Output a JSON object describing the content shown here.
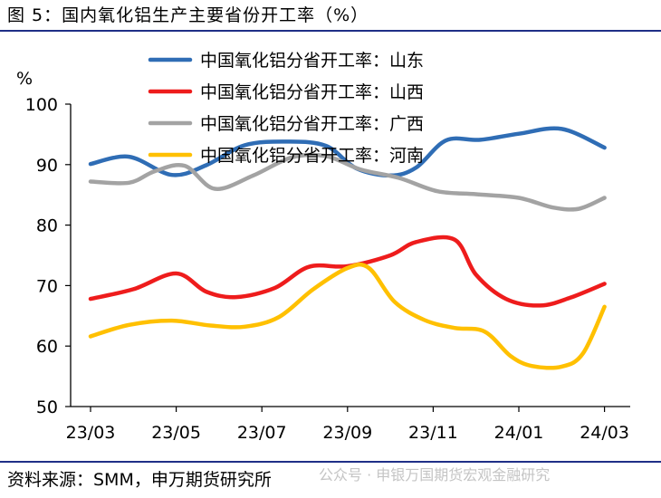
{
  "figure": {
    "title": "图 5：国内氧化铝生产主要省份开工率（%）",
    "source": "资料来源：SMM，申万期货研究所",
    "watermark": "公众号 · 申银万国期货宏观金融研究"
  },
  "chart_data": {
    "type": "line",
    "ylabel": "%",
    "ylim": [
      50,
      100
    ],
    "yticks": [
      "50",
      "60",
      "70",
      "80",
      "90",
      "100"
    ],
    "xlim": [
      0,
      12.5
    ],
    "xticks": [
      {
        "pos": 0,
        "label": "23/03"
      },
      {
        "pos": 2,
        "label": "23/05"
      },
      {
        "pos": 4,
        "label": "23/07"
      },
      {
        "pos": 6,
        "label": "23/09"
      },
      {
        "pos": 8,
        "label": "23/11"
      },
      {
        "pos": 10,
        "label": "24/01"
      },
      {
        "pos": 12,
        "label": "24/03"
      }
    ],
    "grid": false,
    "legend_position": "top-right",
    "series": [
      {
        "name": "中国氧化铝分省开工率：山东",
        "color": "#2f6db5",
        "x": [
          0,
          0.9,
          1.9,
          2.7,
          3.6,
          4.6,
          5.5,
          6.2,
          7.0,
          7.6,
          8.3,
          9.1,
          10.0,
          11.0,
          12.0
        ],
        "y": [
          90.1,
          91.3,
          88.3,
          89.9,
          93.2,
          93.8,
          93.1,
          89.4,
          88.2,
          89.5,
          94.0,
          94.1,
          95.1,
          95.9,
          92.8
        ]
      },
      {
        "name": "中国氧化铝分省开工率：山西",
        "color": "#ee1c1c",
        "x": [
          0,
          1.0,
          2.0,
          2.7,
          3.4,
          4.3,
          5.1,
          6.0,
          7.0,
          7.6,
          8.5,
          9.0,
          9.7,
          10.5,
          11.2,
          12.0
        ],
        "y": [
          67.8,
          69.4,
          72.0,
          69.0,
          68.1,
          69.6,
          73.1,
          73.2,
          75.0,
          77.2,
          77.6,
          71.8,
          67.8,
          66.7,
          68.0,
          70.3
        ]
      },
      {
        "name": "中国氧化铝分省开工率：广西",
        "color": "#a3a3a3",
        "x": [
          0,
          0.9,
          1.5,
          2.2,
          2.9,
          3.8,
          4.7,
          5.5,
          6.3,
          7.2,
          8.1,
          9.0,
          10.0,
          10.8,
          11.4,
          12.0
        ],
        "y": [
          87.2,
          87.0,
          88.9,
          89.8,
          86.0,
          88.2,
          91.2,
          91.4,
          89.2,
          87.8,
          85.6,
          85.1,
          84.5,
          82.9,
          82.7,
          84.5
        ]
      },
      {
        "name": "中国氧化铝分省开工率：河南",
        "color": "#ffc000",
        "x": [
          0,
          0.9,
          1.9,
          2.8,
          3.6,
          4.4,
          5.2,
          6.0,
          6.5,
          7.1,
          7.8,
          8.5,
          9.2,
          9.8,
          10.3,
          11.0,
          11.5,
          12.0
        ],
        "y": [
          61.6,
          63.5,
          64.2,
          63.4,
          63.2,
          64.8,
          69.4,
          72.9,
          72.9,
          67.3,
          64.3,
          63.0,
          62.4,
          58.4,
          56.7,
          56.6,
          58.8,
          66.5
        ]
      }
    ]
  }
}
